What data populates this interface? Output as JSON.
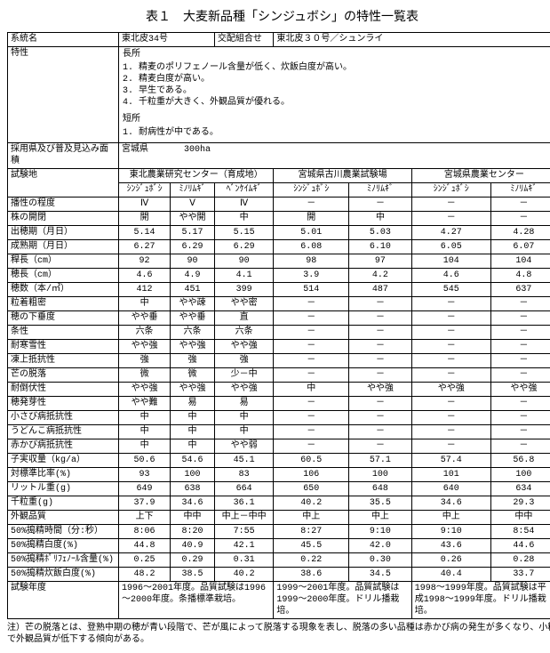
{
  "title": "表１　大麦新品種「シンジュボシ」の特性一覧表",
  "hdr": {
    "lineage_label": "系統名",
    "lineage_value": "東北皮34号",
    "cross_label": "交配組合せ",
    "cross_value": "東北皮３０号／シュンライ",
    "char_label": "特性",
    "char_adv_label": "長所",
    "adv1": "精麦のポリフェノール含量が低く、炊飯白度が高い。",
    "adv2": "精麦白度が高い。",
    "adv3": "早生である。",
    "adv4": "千粒重が大きく、外観品質が優れる。",
    "char_dis_label": "短所",
    "dis1": "耐病性が中である。",
    "adopt_label": "採用県及び普及見込み面積",
    "adopt_value": "宮城県　　　　300ha",
    "testsite_label": "試験地",
    "site1": "東北農業研究センター（育成地）",
    "site2": "宮城県古川農業試験場",
    "site3": "宮城県農業センター",
    "var_s": "ｼﾝｼﾞｭﾎﾞｼ",
    "var_m": "ﾐﾉﾘﾑｷﾞ",
    "var_b": "ﾍﾞﾝｹｲﾑｷﾞ"
  },
  "rows": [
    {
      "l": "播性の程度",
      "a": "Ⅳ",
      "b": "Ⅴ",
      "c": "Ⅳ",
      "d": "－",
      "e": "－",
      "f": "－",
      "g": "－"
    },
    {
      "l": "株の開閉",
      "a": "開",
      "b": "やや開",
      "c": "中",
      "d": "開",
      "e": "中",
      "f": "－",
      "g": "－"
    },
    {
      "l": "出穂期（月日）",
      "a": "5.14",
      "b": "5.17",
      "c": "5.15",
      "d": "5.01",
      "e": "5.03",
      "f": "4.27",
      "g": "4.28"
    },
    {
      "l": "成熟期（月日）",
      "a": "6.27",
      "b": "6.29",
      "c": "6.29",
      "d": "6.08",
      "e": "6.10",
      "f": "6.05",
      "g": "6.07"
    },
    {
      "l": "稈長（cm）",
      "a": "92",
      "b": "90",
      "c": "90",
      "d": "98",
      "e": "97",
      "f": "104",
      "g": "104"
    },
    {
      "l": "穂長（cm）",
      "a": "4.6",
      "b": "4.9",
      "c": "4.1",
      "d": "3.9",
      "e": "4.2",
      "f": "4.6",
      "g": "4.8"
    },
    {
      "l": "穂数（本/㎡）",
      "a": "412",
      "b": "451",
      "c": "399",
      "d": "514",
      "e": "487",
      "f": "545",
      "g": "637"
    },
    {
      "l": "粒着粗密",
      "a": "中",
      "b": "やや疎",
      "c": "やや密",
      "d": "－",
      "e": "－",
      "f": "－",
      "g": "－",
      "sec": true
    },
    {
      "l": "穂の下垂度",
      "a": "やや垂",
      "b": "やや垂",
      "c": "直",
      "d": "－",
      "e": "－",
      "f": "－",
      "g": "－"
    },
    {
      "l": "条性",
      "a": "六条",
      "b": "六条",
      "c": "六条",
      "d": "－",
      "e": "－",
      "f": "－",
      "g": "－"
    },
    {
      "l": "耐寒雪性",
      "a": "やや強",
      "b": "やや強",
      "c": "やや強",
      "d": "－",
      "e": "－",
      "f": "－",
      "g": "－",
      "sec": true
    },
    {
      "l": "凍上抵抗性",
      "a": "強",
      "b": "強",
      "c": "強",
      "d": "－",
      "e": "－",
      "f": "－",
      "g": "－"
    },
    {
      "l": "芒の脱落",
      "a": "微",
      "b": "微",
      "c": "少－中",
      "d": "－",
      "e": "－",
      "f": "－",
      "g": "－"
    },
    {
      "l": "耐倒伏性",
      "a": "やや強",
      "b": "やや強",
      "c": "やや強",
      "d": "中",
      "e": "やや強",
      "f": "やや強",
      "g": "やや強"
    },
    {
      "l": "穂発芽性",
      "a": "やや難",
      "b": "易",
      "c": "易",
      "d": "－",
      "e": "－",
      "f": "－",
      "g": "－"
    },
    {
      "l": "小さび病抵抗性",
      "a": "中",
      "b": "中",
      "c": "中",
      "d": "－",
      "e": "－",
      "f": "－",
      "g": "－"
    },
    {
      "l": "うどんこ病抵抗性",
      "a": "中",
      "b": "中",
      "c": "中",
      "d": "－",
      "e": "－",
      "f": "－",
      "g": "－"
    },
    {
      "l": "赤かび病抵抗性",
      "a": "中",
      "b": "中",
      "c": "やや弱",
      "d": "－",
      "e": "－",
      "f": "－",
      "g": "－"
    },
    {
      "l": "子実収量（kg/a）",
      "a": "50.6",
      "b": "54.6",
      "c": "45.1",
      "d": "60.5",
      "e": "57.1",
      "f": "57.4",
      "g": "56.8",
      "sec": true
    },
    {
      "l": "対標準比率(%)",
      "a": "93",
      "b": "100",
      "c": "83",
      "d": "106",
      "e": "100",
      "f": "101",
      "g": "100"
    },
    {
      "l": "リットル重(g)",
      "a": "649",
      "b": "638",
      "c": "664",
      "d": "650",
      "e": "648",
      "f": "640",
      "g": "634"
    },
    {
      "l": "千粒重(g)",
      "a": "37.9",
      "b": "34.6",
      "c": "36.1",
      "d": "40.2",
      "e": "35.5",
      "f": "34.6",
      "g": "29.3"
    },
    {
      "l": "外観品質",
      "a": "上下",
      "b": "中中",
      "c": "中上－中中",
      "d": "中上",
      "e": "中上",
      "f": "中上",
      "g": "中中"
    },
    {
      "l": "50%搗精時間（分:秒）",
      "a": "8:06",
      "b": "8:20",
      "c": "7:55",
      "d": "8:27",
      "e": "9:10",
      "f": "9:10",
      "g": "8:54"
    },
    {
      "l": "50%搗精白度(%)",
      "a": "44.8",
      "b": "40.9",
      "c": "42.1",
      "d": "45.5",
      "e": "42.0",
      "f": "43.6",
      "g": "44.6"
    },
    {
      "l": "50%搗精ﾎﾟﾘﾌｪﾉｰﾙ含量(%)",
      "a": "0.25",
      "b": "0.29",
      "c": "0.31",
      "d": "0.22",
      "e": "0.30",
      "f": "0.26",
      "g": "0.28"
    },
    {
      "l": "50%搗精炊飯白度(%)",
      "a": "48.2",
      "b": "38.5",
      "c": "40.2",
      "d": "38.6",
      "e": "34.5",
      "f": "40.4",
      "g": "33.7"
    }
  ],
  "footer": {
    "label": "試験年度",
    "f1": "1996～2001年度。品質試験は1996～2000年度。条播標準栽培。",
    "f2": "1999～2001年度。品質試験は1999～2000年度。ドリル播栽培。",
    "f3": "1998～1999年度。品質試験は平成1998～1999年度。ドリル播栽培。"
  },
  "note": "注）芒の脱落とは、登熟中期の穂が青い段階で、芒が風によって脱落する現象を表し、脱落の多い品種は赤かび病の発生が多くなり、小粒で外観品質が低下する傾向がある。"
}
